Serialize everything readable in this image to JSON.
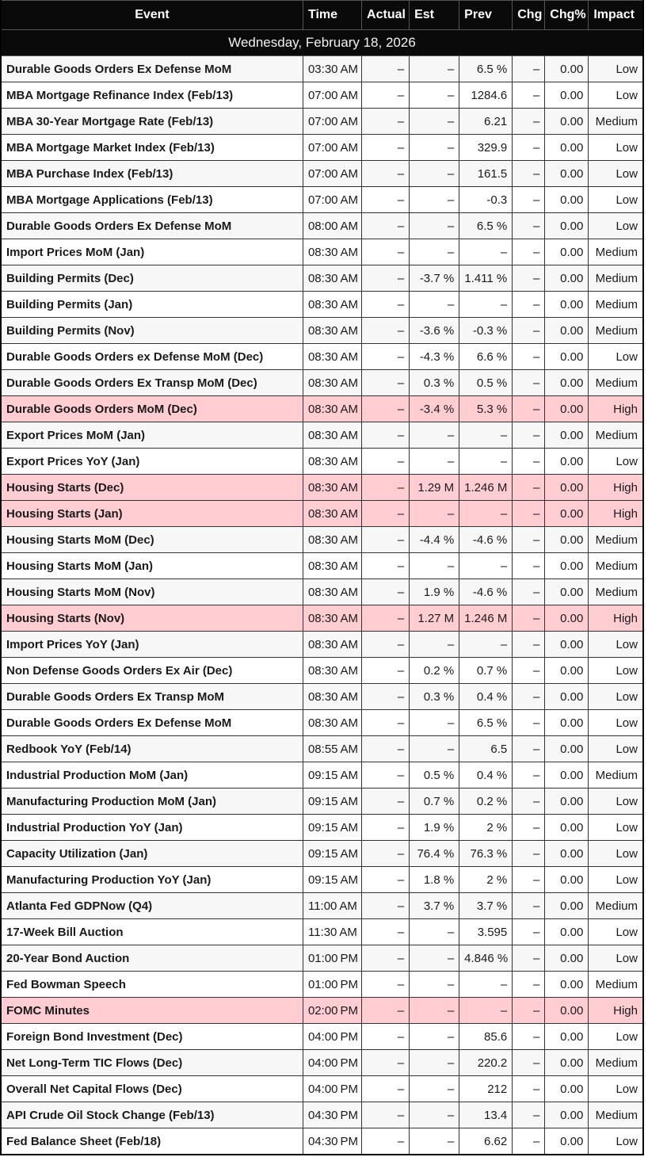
{
  "table": {
    "date_header": "Wednesday, February 18, 2026",
    "columns": [
      "Event",
      "Time",
      "Actual",
      "Est",
      "Prev",
      "Chg",
      "Chg%",
      "Impact"
    ],
    "colors": {
      "header_bg": "#0a0a0a",
      "alt_row_bg": "#f7f7f7",
      "high_impact_row_bg": "#ffcdd2"
    },
    "rows": [
      {
        "event": "Durable Goods Orders Ex Defense MoM",
        "time": "03:30 AM",
        "actual": "–",
        "est": "–",
        "prev": "6.5 %",
        "chg": "–",
        "chg_pct": "0.00",
        "impact": "Low"
      },
      {
        "event": "MBA Mortgage Refinance Index (Feb/13)",
        "time": "07:00 AM",
        "actual": "–",
        "est": "–",
        "prev": "1284.6",
        "chg": "–",
        "chg_pct": "0.00",
        "impact": "Low"
      },
      {
        "event": "MBA 30-Year Mortgage Rate (Feb/13)",
        "time": "07:00 AM",
        "actual": "–",
        "est": "–",
        "prev": "6.21",
        "chg": "–",
        "chg_pct": "0.00",
        "impact": "Medium"
      },
      {
        "event": "MBA Mortgage Market Index (Feb/13)",
        "time": "07:00 AM",
        "actual": "–",
        "est": "–",
        "prev": "329.9",
        "chg": "–",
        "chg_pct": "0.00",
        "impact": "Low"
      },
      {
        "event": "MBA Purchase Index (Feb/13)",
        "time": "07:00 AM",
        "actual": "–",
        "est": "–",
        "prev": "161.5",
        "chg": "–",
        "chg_pct": "0.00",
        "impact": "Low"
      },
      {
        "event": "MBA Mortgage Applications (Feb/13)",
        "time": "07:00 AM",
        "actual": "–",
        "est": "–",
        "prev": "-0.3",
        "chg": "–",
        "chg_pct": "0.00",
        "impact": "Low"
      },
      {
        "event": "Durable Goods Orders Ex Defense MoM",
        "time": "08:00 AM",
        "actual": "–",
        "est": "–",
        "prev": "6.5 %",
        "chg": "–",
        "chg_pct": "0.00",
        "impact": "Low"
      },
      {
        "event": "Import Prices MoM (Jan)",
        "time": "08:30 AM",
        "actual": "–",
        "est": "–",
        "prev": "–",
        "chg": "–",
        "chg_pct": "0.00",
        "impact": "Medium"
      },
      {
        "event": "Building Permits (Dec)",
        "time": "08:30 AM",
        "actual": "–",
        "est": "-3.7 %",
        "prev": "1.411 %",
        "chg": "–",
        "chg_pct": "0.00",
        "impact": "Medium"
      },
      {
        "event": "Building Permits (Jan)",
        "time": "08:30 AM",
        "actual": "–",
        "est": "–",
        "prev": "–",
        "chg": "–",
        "chg_pct": "0.00",
        "impact": "Medium"
      },
      {
        "event": "Building Permits (Nov)",
        "time": "08:30 AM",
        "actual": "–",
        "est": "-3.6 %",
        "prev": "-0.3 %",
        "chg": "–",
        "chg_pct": "0.00",
        "impact": "Medium"
      },
      {
        "event": "Durable Goods Orders ex Defense MoM (Dec)",
        "time": "08:30 AM",
        "actual": "–",
        "est": "-4.3 %",
        "prev": "6.6 %",
        "chg": "–",
        "chg_pct": "0.00",
        "impact": "Low"
      },
      {
        "event": "Durable Goods Orders Ex Transp MoM (Dec)",
        "time": "08:30 AM",
        "actual": "–",
        "est": "0.3 %",
        "prev": "0.5 %",
        "chg": "–",
        "chg_pct": "0.00",
        "impact": "Medium"
      },
      {
        "event": "Durable Goods Orders MoM (Dec)",
        "time": "08:30 AM",
        "actual": "–",
        "est": "-3.4 %",
        "prev": "5.3 %",
        "chg": "–",
        "chg_pct": "0.00",
        "impact": "High"
      },
      {
        "event": "Export Prices MoM (Jan)",
        "time": "08:30 AM",
        "actual": "–",
        "est": "–",
        "prev": "–",
        "chg": "–",
        "chg_pct": "0.00",
        "impact": "Medium"
      },
      {
        "event": "Export Prices YoY (Jan)",
        "time": "08:30 AM",
        "actual": "–",
        "est": "–",
        "prev": "–",
        "chg": "–",
        "chg_pct": "0.00",
        "impact": "Low"
      },
      {
        "event": "Housing Starts (Dec)",
        "time": "08:30 AM",
        "actual": "–",
        "est": "1.29 M",
        "prev": "1.246 M",
        "chg": "–",
        "chg_pct": "0.00",
        "impact": "High"
      },
      {
        "event": "Housing Starts (Jan)",
        "time": "08:30 AM",
        "actual": "–",
        "est": "–",
        "prev": "–",
        "chg": "–",
        "chg_pct": "0.00",
        "impact": "High"
      },
      {
        "event": "Housing Starts MoM (Dec)",
        "time": "08:30 AM",
        "actual": "–",
        "est": "-4.4 %",
        "prev": "-4.6 %",
        "chg": "–",
        "chg_pct": "0.00",
        "impact": "Medium"
      },
      {
        "event": "Housing Starts MoM (Jan)",
        "time": "08:30 AM",
        "actual": "–",
        "est": "–",
        "prev": "–",
        "chg": "–",
        "chg_pct": "0.00",
        "impact": "Medium"
      },
      {
        "event": "Housing Starts MoM (Nov)",
        "time": "08:30 AM",
        "actual": "–",
        "est": "1.9 %",
        "prev": "-4.6 %",
        "chg": "–",
        "chg_pct": "0.00",
        "impact": "Medium"
      },
      {
        "event": "Housing Starts (Nov)",
        "time": "08:30 AM",
        "actual": "–",
        "est": "1.27 M",
        "prev": "1.246 M",
        "chg": "–",
        "chg_pct": "0.00",
        "impact": "High"
      },
      {
        "event": "Import Prices YoY (Jan)",
        "time": "08:30 AM",
        "actual": "–",
        "est": "–",
        "prev": "–",
        "chg": "–",
        "chg_pct": "0.00",
        "impact": "Low"
      },
      {
        "event": "Non Defense Goods Orders Ex Air (Dec)",
        "time": "08:30 AM",
        "actual": "–",
        "est": "0.2 %",
        "prev": "0.7 %",
        "chg": "–",
        "chg_pct": "0.00",
        "impact": "Low"
      },
      {
        "event": "Durable Goods Orders Ex Transp MoM",
        "time": "08:30 AM",
        "actual": "–",
        "est": "0.3 %",
        "prev": "0.4 %",
        "chg": "–",
        "chg_pct": "0.00",
        "impact": "Low"
      },
      {
        "event": "Durable Goods Orders Ex Defense MoM",
        "time": "08:30 AM",
        "actual": "–",
        "est": "–",
        "prev": "6.5 %",
        "chg": "–",
        "chg_pct": "0.00",
        "impact": "Low"
      },
      {
        "event": "Redbook YoY (Feb/14)",
        "time": "08:55 AM",
        "actual": "–",
        "est": "–",
        "prev": "6.5",
        "chg": "–",
        "chg_pct": "0.00",
        "impact": "Low"
      },
      {
        "event": "Industrial Production MoM (Jan)",
        "time": "09:15 AM",
        "actual": "–",
        "est": "0.5 %",
        "prev": "0.4 %",
        "chg": "–",
        "chg_pct": "0.00",
        "impact": "Medium"
      },
      {
        "event": "Manufacturing Production MoM (Jan)",
        "time": "09:15 AM",
        "actual": "–",
        "est": "0.7 %",
        "prev": "0.2 %",
        "chg": "–",
        "chg_pct": "0.00",
        "impact": "Low"
      },
      {
        "event": "Industrial Production YoY (Jan)",
        "time": "09:15 AM",
        "actual": "–",
        "est": "1.9 %",
        "prev": "2 %",
        "chg": "–",
        "chg_pct": "0.00",
        "impact": "Low"
      },
      {
        "event": "Capacity Utilization (Jan)",
        "time": "09:15 AM",
        "actual": "–",
        "est": "76.4 %",
        "prev": "76.3 %",
        "chg": "–",
        "chg_pct": "0.00",
        "impact": "Low"
      },
      {
        "event": "Manufacturing Production YoY (Jan)",
        "time": "09:15 AM",
        "actual": "–",
        "est": "1.8 %",
        "prev": "2 %",
        "chg": "–",
        "chg_pct": "0.00",
        "impact": "Low"
      },
      {
        "event": "Atlanta Fed GDPNow (Q4)",
        "time": "11:00 AM",
        "actual": "–",
        "est": "3.7 %",
        "prev": "3.7 %",
        "chg": "–",
        "chg_pct": "0.00",
        "impact": "Medium"
      },
      {
        "event": "17-Week Bill Auction",
        "time": "11:30 AM",
        "actual": "–",
        "est": "–",
        "prev": "3.595",
        "chg": "–",
        "chg_pct": "0.00",
        "impact": "Low"
      },
      {
        "event": "20-Year Bond Auction",
        "time": "01:00 PM",
        "actual": "–",
        "est": "–",
        "prev": "4.846 %",
        "chg": "–",
        "chg_pct": "0.00",
        "impact": "Low"
      },
      {
        "event": "Fed Bowman Speech",
        "time": "01:00 PM",
        "actual": "–",
        "est": "–",
        "prev": "–",
        "chg": "–",
        "chg_pct": "0.00",
        "impact": "Medium"
      },
      {
        "event": "FOMC Minutes",
        "time": "02:00 PM",
        "actual": "–",
        "est": "–",
        "prev": "–",
        "chg": "–",
        "chg_pct": "0.00",
        "impact": "High"
      },
      {
        "event": "Foreign Bond Investment (Dec)",
        "time": "04:00 PM",
        "actual": "–",
        "est": "–",
        "prev": "85.6",
        "chg": "–",
        "chg_pct": "0.00",
        "impact": "Low"
      },
      {
        "event": "Net Long-Term TIC Flows (Dec)",
        "time": "04:00 PM",
        "actual": "–",
        "est": "–",
        "prev": "220.2",
        "chg": "–",
        "chg_pct": "0.00",
        "impact": "Medium"
      },
      {
        "event": "Overall Net Capital Flows (Dec)",
        "time": "04:00 PM",
        "actual": "–",
        "est": "–",
        "prev": "212",
        "chg": "–",
        "chg_pct": "0.00",
        "impact": "Low"
      },
      {
        "event": "API Crude Oil Stock Change (Feb/13)",
        "time": "04:30 PM",
        "actual": "–",
        "est": "–",
        "prev": "13.4",
        "chg": "–",
        "chg_pct": "0.00",
        "impact": "Medium"
      },
      {
        "event": "Fed Balance Sheet (Feb/18)",
        "time": "04:30 PM",
        "actual": "–",
        "est": "–",
        "prev": "6.62",
        "chg": "–",
        "chg_pct": "0.00",
        "impact": "Low"
      }
    ]
  }
}
